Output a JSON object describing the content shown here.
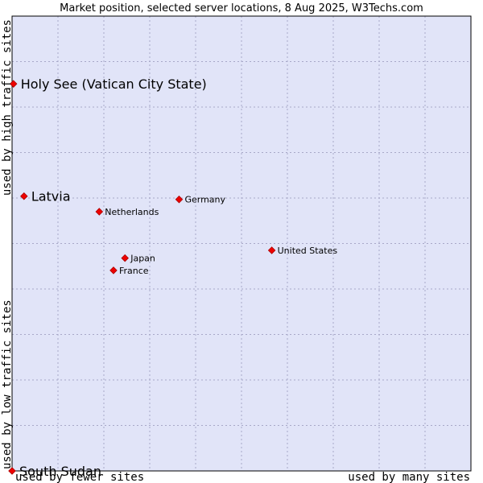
{
  "chart_data": {
    "type": "scatter",
    "title": "Market position, selected server locations, 8 Aug 2025, W3Techs.com",
    "xlabel_left": "used by fewer sites",
    "xlabel_right": "used by many sites",
    "ylabel_bottom": "used by low traffic sites",
    "ylabel_top": "used by high traffic sites",
    "xlim": [
      0,
      100
    ],
    "ylim": [
      0,
      100
    ],
    "grid": true,
    "points": [
      {
        "label": "Holy See (Vatican City State)",
        "x": 0.3,
        "y": 85.1,
        "highlight": true
      },
      {
        "label": "Latvia",
        "x": 2.6,
        "y": 60.4,
        "highlight": true
      },
      {
        "label": "Germany",
        "x": 36.4,
        "y": 59.7,
        "highlight": false
      },
      {
        "label": "Netherlands",
        "x": 19.0,
        "y": 57.0,
        "highlight": false
      },
      {
        "label": "United States",
        "x": 56.6,
        "y": 48.5,
        "highlight": false
      },
      {
        "label": "Japan",
        "x": 24.6,
        "y": 46.8,
        "highlight": false
      },
      {
        "label": "France",
        "x": 22.1,
        "y": 44.1,
        "highlight": false
      },
      {
        "label": "South Sudan",
        "x": 0.0,
        "y": 0.0,
        "highlight": true
      }
    ]
  }
}
